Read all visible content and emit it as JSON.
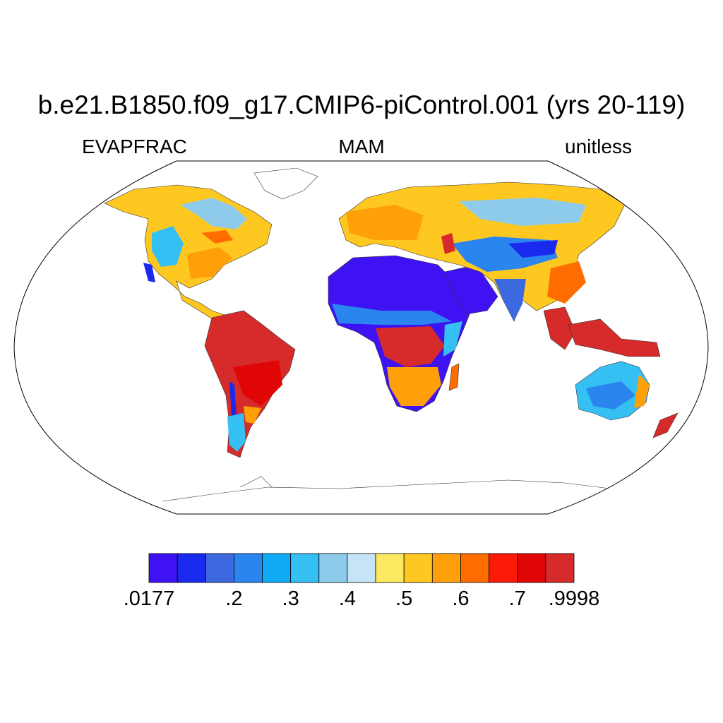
{
  "title": "b.e21.B1850.f09_g17.CMIP6-piControl.001 (yrs 20-119)",
  "left_label": "EVAPFRAC",
  "center_label": "MAM",
  "right_label": "unitless",
  "projection": "Robinson",
  "colorbar": {
    "colors": [
      "#3e12f2",
      "#1a29ee",
      "#3c68e0",
      "#2a85ef",
      "#10aaf4",
      "#34c0f2",
      "#8ecbeb",
      "#c6e4f6",
      "#fde862",
      "#ffc821",
      "#ff9f0a",
      "#ff6d00",
      "#fd1a09",
      "#e10606",
      "#d72b2b"
    ],
    "tick_labels": [
      ".0177",
      ".2",
      ".3",
      ".4",
      ".5",
      ".6",
      ".7",
      ".9998"
    ],
    "min": 0.0177,
    "max": 0.9998
  }
}
